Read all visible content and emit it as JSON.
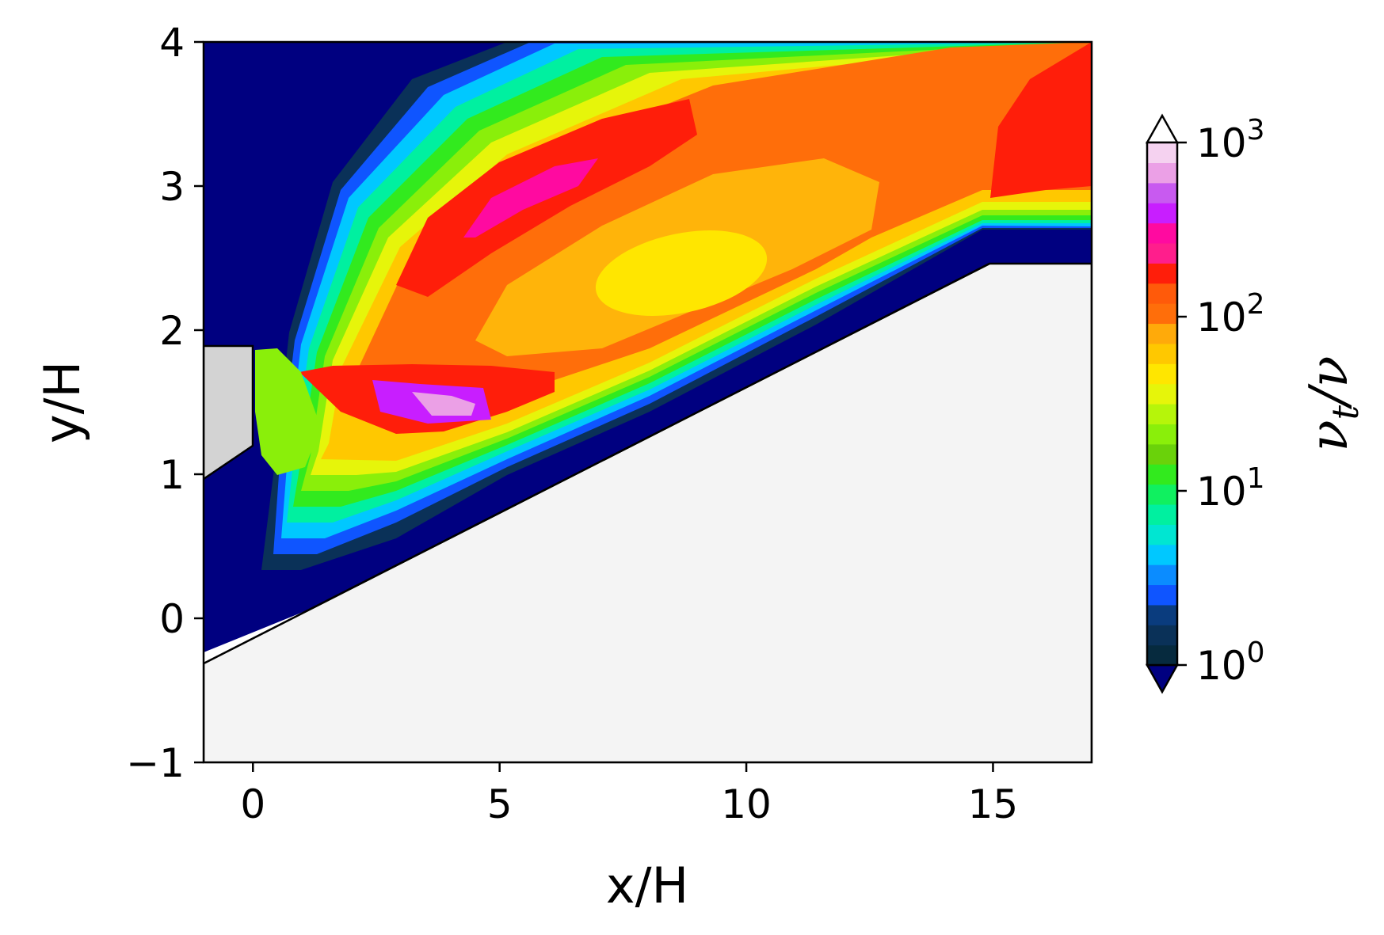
{
  "chart_data": {
    "type": "contour",
    "xlabel": "x/H",
    "ylabel": "y/H",
    "xlim": [
      -1,
      17
    ],
    "ylim": [
      -1,
      4
    ],
    "xticks": [
      0,
      5,
      10,
      15
    ],
    "yticks": [
      -1,
      0,
      1,
      2,
      3,
      4
    ],
    "xtick_labels": [
      "0",
      "5",
      "10",
      "15"
    ],
    "ytick_labels": [
      "−1",
      "0",
      "1",
      "2",
      "3",
      "4"
    ],
    "colorbar": {
      "label_base": "ν",
      "label_sub": "t",
      "label_tail": "/ν",
      "scale": "log",
      "range": [
        1,
        1000
      ],
      "extend": "both",
      "tick_exponents": [
        "0",
        "1",
        "2",
        "3"
      ],
      "tick_base": "10",
      "levels": 24,
      "colors": [
        "#062a3e",
        "#0a3158",
        "#0a3c7e",
        "#0f55ff",
        "#0b8cff",
        "#00c8ff",
        "#00e6d2",
        "#00f0a0",
        "#10f060",
        "#32ea1e",
        "#6ad20a",
        "#8aef0a",
        "#b6f50a",
        "#e6f50a",
        "#ffe600",
        "#ffc800",
        "#ffaa0a",
        "#ff6e0a",
        "#ff5a0a",
        "#ff1e0a",
        "#ff1e8c",
        "#ff0aa0",
        "#c81eff",
        "#c85af0",
        "#eba0e6",
        "#f5d2f0"
      ],
      "under_color": "#000080",
      "over_color": "#ffffff"
    },
    "geometry_description": "diffuser with inclined lower wall from (0,0) to (15,2.47); inlet block x<0 between y=1.2 and y=1.9"
  }
}
